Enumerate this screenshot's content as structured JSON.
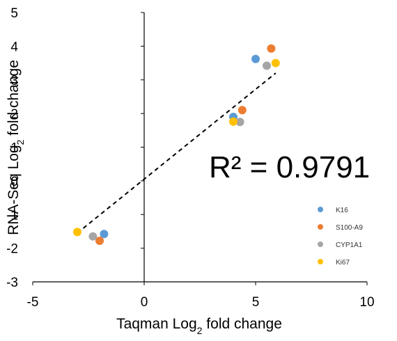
{
  "chart_data": {
    "type": "scatter",
    "xlabel_main": "Taqman Log",
    "xlabel_sub": "2",
    "xlabel_tail": " fold change",
    "ylabel_main": "RNA-Seq Log",
    "ylabel_sub": "2",
    "ylabel_tail": " fold change",
    "xlim": [
      -5,
      10
    ],
    "ylim": [
      -3,
      5
    ],
    "xticks": [
      -5,
      0,
      5,
      10
    ],
    "yticks": [
      -3,
      -2,
      -1,
      0,
      1,
      2,
      3,
      4,
      5
    ],
    "annotation": "R² = 0.9791",
    "trendline": {
      "x": [
        -3.0,
        5.9
      ],
      "y": [
        -1.55,
        3.2
      ],
      "style": "dashed"
    },
    "legend_position": "right",
    "series": [
      {
        "name": "K16",
        "color": "#5B9BD5",
        "points": [
          [
            -1.8,
            -1.58
          ],
          [
            4.0,
            1.9
          ],
          [
            5.0,
            3.62
          ]
        ]
      },
      {
        "name": "S100-A9",
        "color": "#ED7D31",
        "points": [
          [
            -2.0,
            -1.78
          ],
          [
            4.4,
            2.1
          ],
          [
            5.7,
            3.93
          ]
        ]
      },
      {
        "name": "CYP1A1",
        "color": "#A5A5A5",
        "points": [
          [
            -2.3,
            -1.65
          ],
          [
            4.3,
            1.75
          ],
          [
            5.5,
            3.42
          ]
        ]
      },
      {
        "name": "Ki67",
        "color": "#FFC000",
        "points": [
          [
            -3.0,
            -1.52
          ],
          [
            4.0,
            1.76
          ],
          [
            5.9,
            3.5
          ]
        ]
      }
    ]
  }
}
